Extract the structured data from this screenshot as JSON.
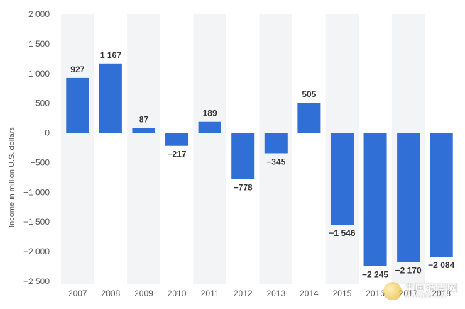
{
  "chart_data": {
    "type": "bar",
    "categories": [
      "2007",
      "2008",
      "2009",
      "2010",
      "2011",
      "2012",
      "2013",
      "2014",
      "2015",
      "2016",
      "2017",
      "2018"
    ],
    "values": [
      927,
      1167,
      87,
      -217,
      189,
      -778,
      -345,
      505,
      -1546,
      -2245,
      -2170,
      -2084
    ],
    "value_labels": [
      "927",
      "1 167",
      "87",
      "−217",
      "189",
      "−778",
      "−345",
      "505",
      "−1 546",
      "−2 245",
      "−2 170",
      "−2 084"
    ],
    "ylabel": "Income in million U.S. dollars",
    "ylim": [
      -2500,
      2000
    ],
    "yticks": [
      2000,
      1500,
      1000,
      500,
      0,
      -500,
      -1000,
      -1500,
      -2000,
      -2500
    ],
    "ytick_labels": [
      "2 000",
      "1 500",
      "1 000",
      "500",
      "0",
      "−500",
      "−1 000",
      "−1 500",
      "−2 000",
      "−2 500"
    ],
    "grid": "vertical-bands",
    "bar_color": "#2f6fd6"
  },
  "watermark": {
    "text": "中国沥青网",
    "url": "sinoasphalt.com"
  }
}
